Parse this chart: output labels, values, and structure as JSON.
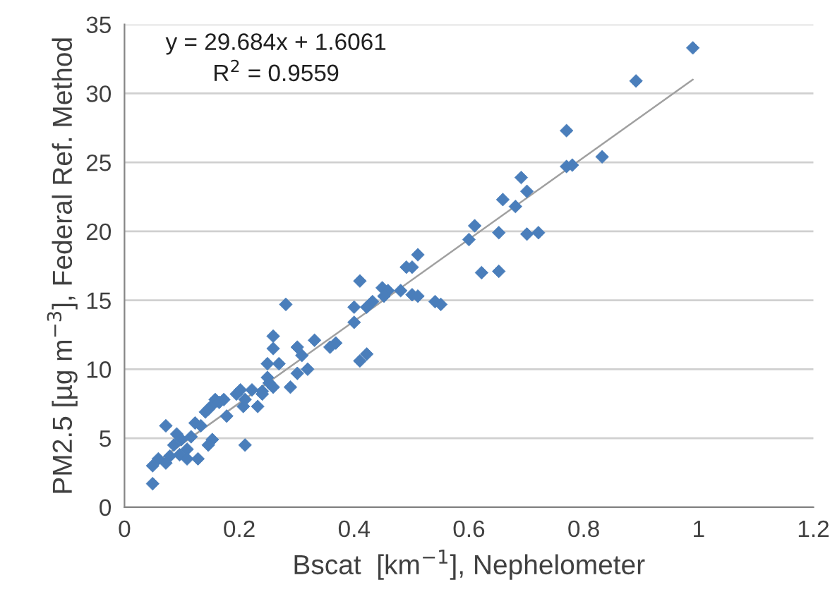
{
  "chart_data": {
    "type": "scatter",
    "xlabel": "Bscat  [km$^{−1}$], Nephelometer",
    "ylabel": "PM2.5 [µg m$^{−3}$], Federal Ref. Method",
    "annotations": [
      "y = 29.684x + 1.6061",
      "R$^{2}$ = 0.9559"
    ],
    "series": [
      {
        "color": "#4a7ebb",
        "marker": "diamond",
        "x": [
          0.99,
          0.891,
          0.77,
          0.77,
          0.78,
          0.832,
          0.691,
          0.659,
          0.701,
          0.681,
          0.652,
          0.701,
          0.721,
          0.622,
          0.652,
          0.61,
          0.6,
          0.511,
          0.491,
          0.501,
          0.41,
          0.449,
          0.459,
          0.481,
          0.452,
          0.501,
          0.511,
          0.541,
          0.551,
          0.432,
          0.422,
          0.4,
          0.281,
          0.4,
          0.259,
          0.259,
          0.331,
          0.309,
          0.301,
          0.358,
          0.368,
          0.422,
          0.41,
          0.249,
          0.269,
          0.319,
          0.301,
          0.249,
          0.24,
          0.289,
          0.259,
          0.252,
          0.24,
          0.222,
          0.202,
          0.195,
          0.173,
          0.158,
          0.153,
          0.165,
          0.141,
          0.146,
          0.178,
          0.207,
          0.21,
          0.232,
          0.072,
          0.123,
          0.133,
          0.091,
          0.099,
          0.086,
          0.116,
          0.153,
          0.146,
          0.21,
          0.109,
          0.096,
          0.109,
          0.079,
          0.128,
          0.072,
          0.059,
          0.049,
          0.049
        ],
        "values": [
          33.3,
          30.9,
          27.3,
          24.7,
          24.8,
          25.4,
          23.9,
          22.3,
          22.9,
          21.8,
          19.9,
          19.8,
          19.9,
          17.0,
          17.1,
          20.4,
          19.4,
          18.3,
          17.4,
          17.4,
          16.4,
          15.9,
          15.7,
          15.7,
          15.3,
          15.4,
          15.3,
          14.9,
          14.7,
          14.9,
          14.5,
          14.5,
          14.7,
          13.4,
          12.4,
          11.5,
          12.1,
          11.0,
          11.6,
          11.6,
          11.9,
          11.1,
          10.6,
          10.4,
          10.4,
          10.0,
          9.7,
          9.4,
          8.4,
          8.7,
          8.7,
          9.0,
          8.2,
          8.5,
          8.5,
          8.2,
          7.8,
          7.8,
          7.4,
          7.6,
          6.9,
          7.1,
          6.6,
          7.3,
          7.8,
          7.3,
          5.9,
          6.1,
          5.9,
          5.3,
          4.9,
          4.5,
          5.1,
          4.9,
          4.5,
          4.5,
          4.2,
          3.8,
          3.5,
          3.7,
          3.5,
          3.2,
          3.5,
          3.0,
          1.7
        ]
      },
      {
        "type": "line",
        "color": "#a0a0a0",
        "marker": "none",
        "line_style": "solid",
        "x": [
          0.05,
          0.99
        ],
        "values": [
          3.1,
          31.0
        ]
      }
    ],
    "xlim": [
      0,
      1.2
    ],
    "xticks": [
      0,
      0.2,
      0.4,
      0.6,
      0.8,
      1,
      1.2
    ],
    "ylim": [
      0,
      35
    ],
    "yticks": [
      0,
      5,
      10,
      15,
      20,
      25,
      30,
      35
    ],
    "grid": "y",
    "legend": false
  }
}
